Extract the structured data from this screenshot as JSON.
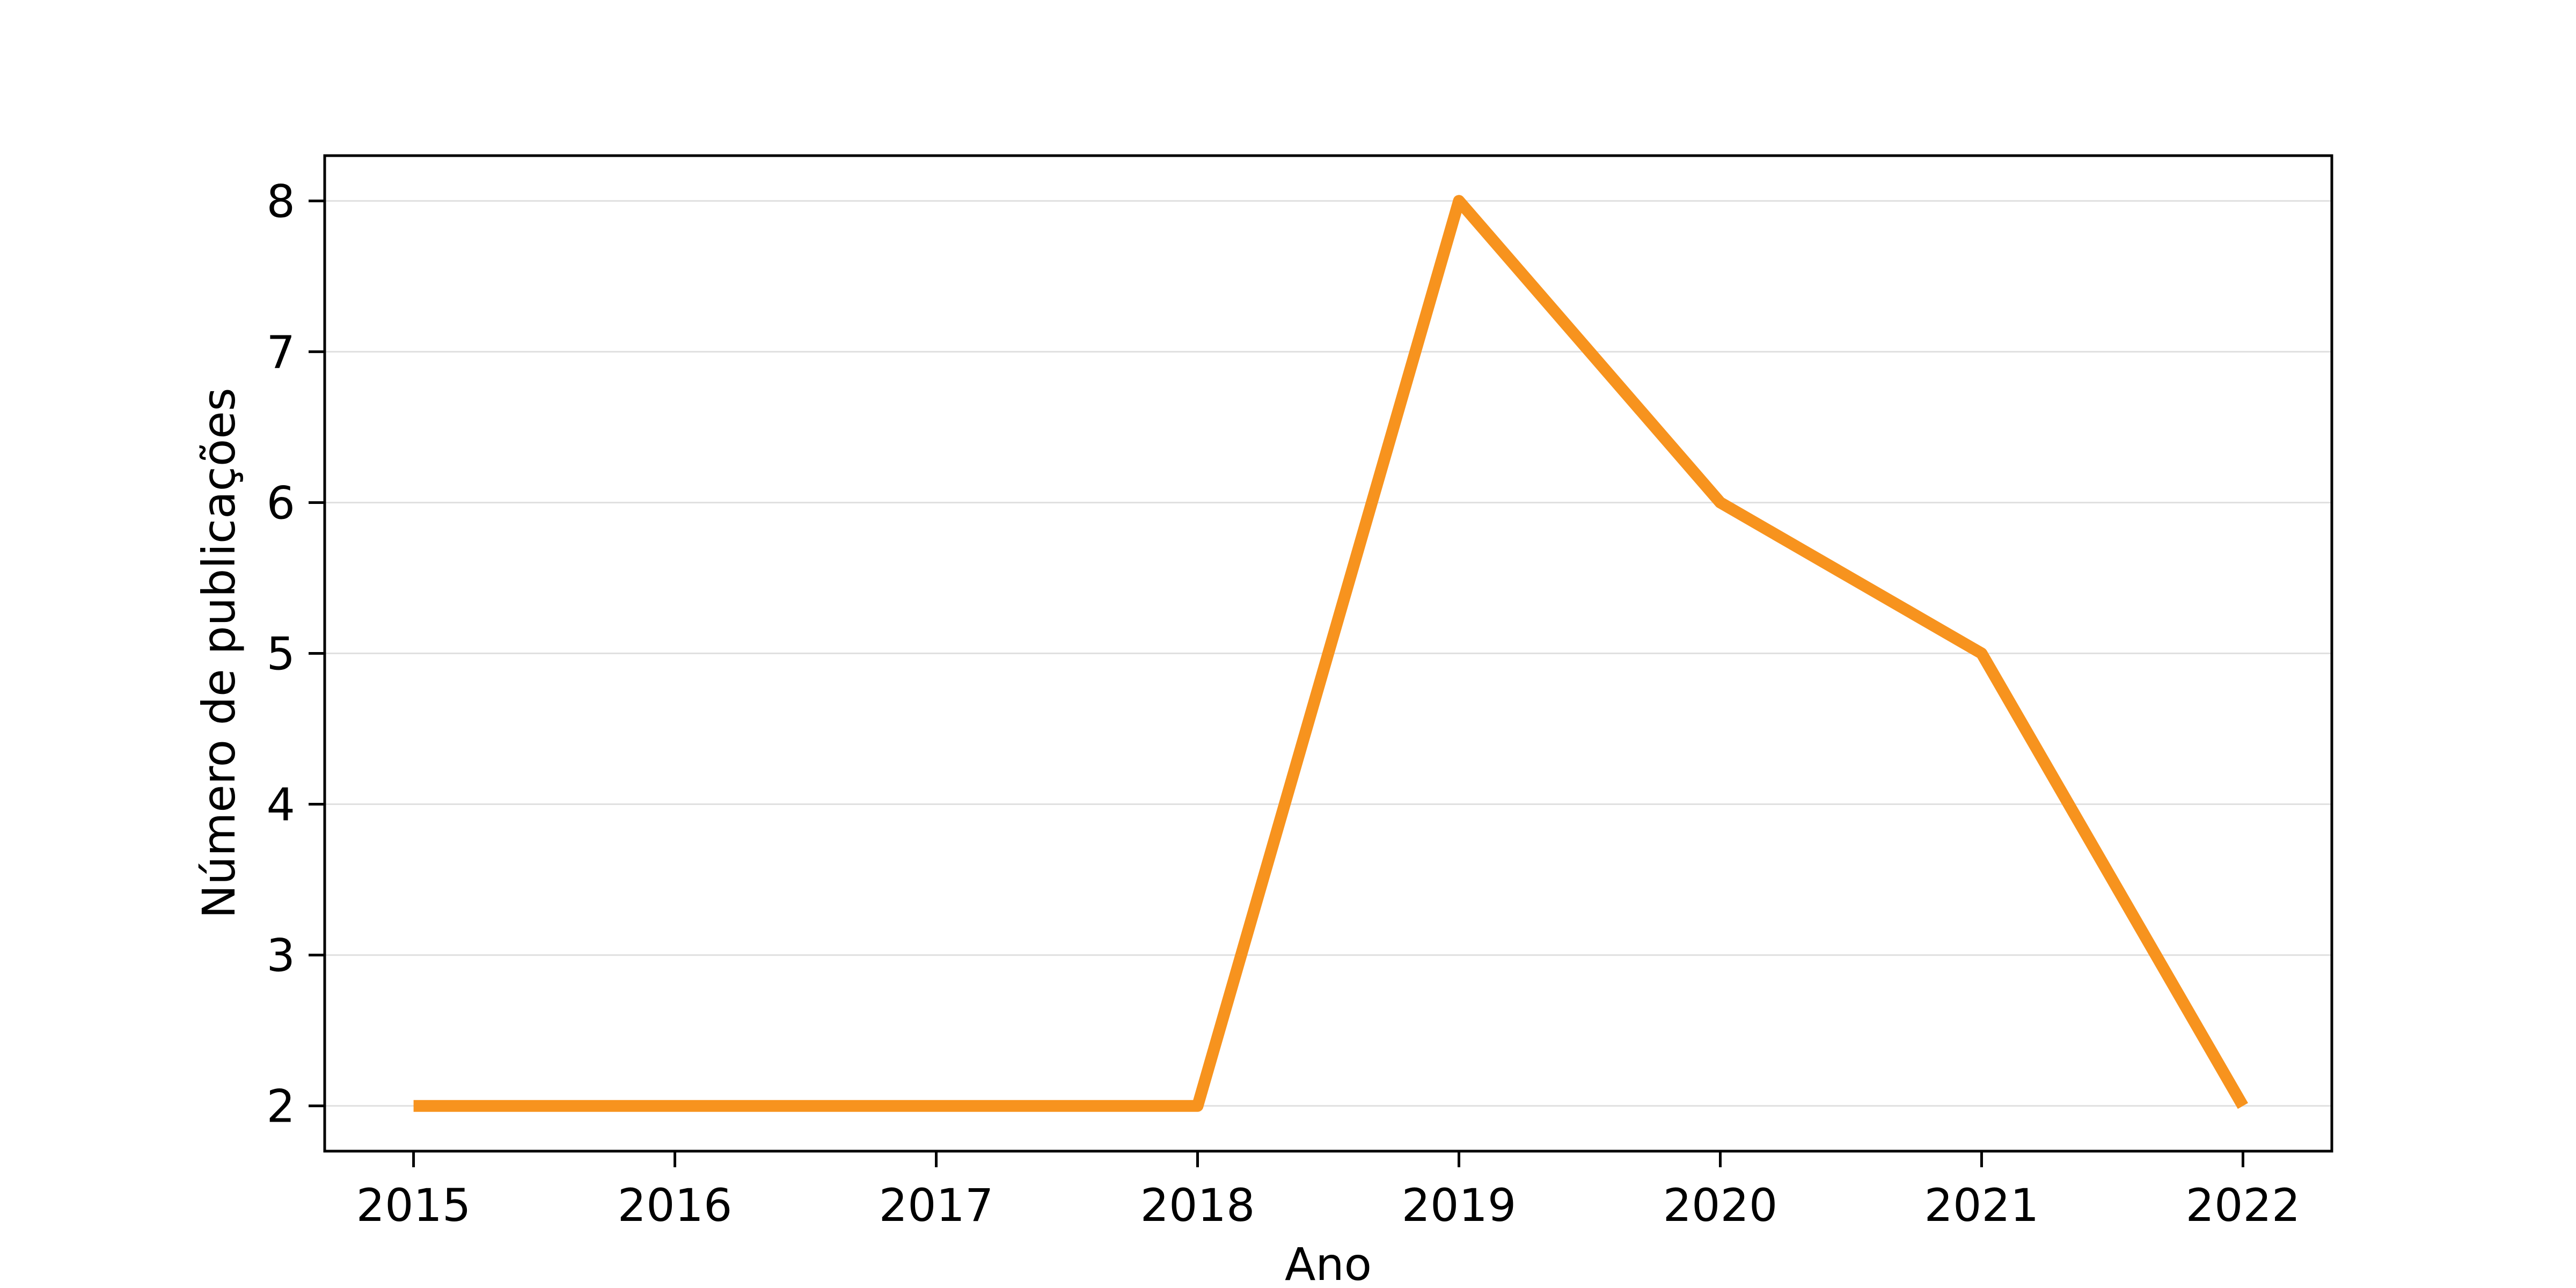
{
  "chart_data": {
    "type": "line",
    "title": "",
    "xlabel": "Ano",
    "ylabel": "Número de publicações",
    "x": [
      2015,
      2016,
      2017,
      2018,
      2019,
      2020,
      2021,
      2022
    ],
    "series": [
      {
        "values": [
          2,
          2,
          2,
          2,
          8,
          6,
          5,
          2
        ],
        "color": "#f7931e"
      }
    ],
    "xticks": [
      "2015",
      "2016",
      "2017",
      "2018",
      "2019",
      "2020",
      "2021",
      "2022"
    ],
    "yticks": [
      "2",
      "3",
      "4",
      "5",
      "6",
      "7",
      "8"
    ],
    "xlim": [
      2014.66,
      2022.34
    ],
    "ylim": [
      1.7,
      8.3
    ],
    "grid": "horizontal",
    "legend": "none"
  }
}
